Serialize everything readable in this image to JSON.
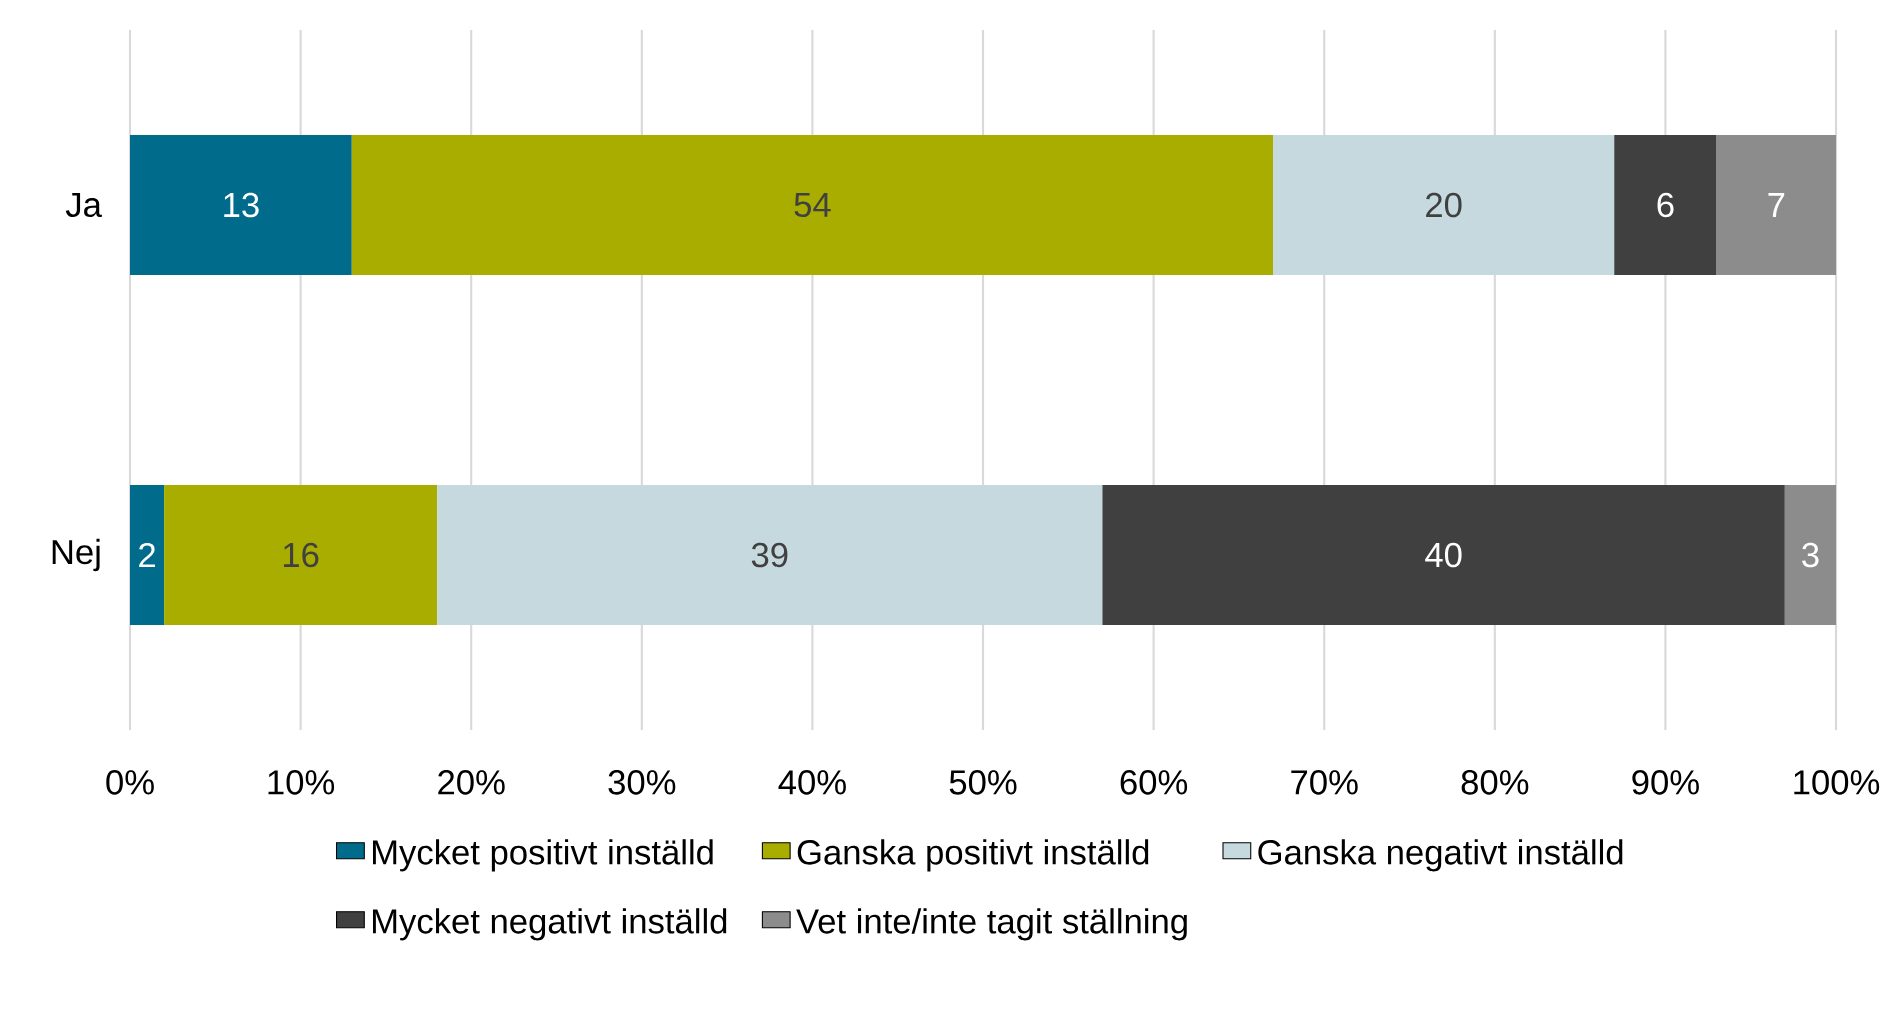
{
  "chart_data": {
    "type": "bar",
    "orientation": "horizontal",
    "stacked": true,
    "categories": [
      "Ja",
      "Nej"
    ],
    "series": [
      {
        "name": "Mycket positivt inställd",
        "color": "#006b8a",
        "values": [
          13,
          2
        ]
      },
      {
        "name": "Ganska positivt inställd",
        "color": "#a8ad00",
        "values": [
          54,
          16
        ]
      },
      {
        "name": "Ganska negativt inställd",
        "color": "#c5d9df",
        "values": [
          20,
          39
        ]
      },
      {
        "name": "Mycket negativt inställd",
        "color": "#404040",
        "values": [
          6,
          40
        ]
      },
      {
        "name": "Vet inte/inte tagit ställning",
        "color": "#8c8c8c",
        "values": [
          7,
          3
        ]
      }
    ],
    "xlim": [
      0,
      100
    ],
    "xticks": [
      {
        "value": 0,
        "label": "0%"
      },
      {
        "value": 10,
        "label": "10%"
      },
      {
        "value": 20,
        "label": "20%"
      },
      {
        "value": 30,
        "label": "30%"
      },
      {
        "value": 40,
        "label": "40%"
      },
      {
        "value": 50,
        "label": "50%"
      },
      {
        "value": 60,
        "label": "60%"
      },
      {
        "value": 70,
        "label": "70%"
      },
      {
        "value": 80,
        "label": "80%"
      },
      {
        "value": 90,
        "label": "90%"
      },
      {
        "value": 100,
        "label": "100%"
      }
    ],
    "grid": "x",
    "legend": "bottom",
    "data_labels": true
  }
}
